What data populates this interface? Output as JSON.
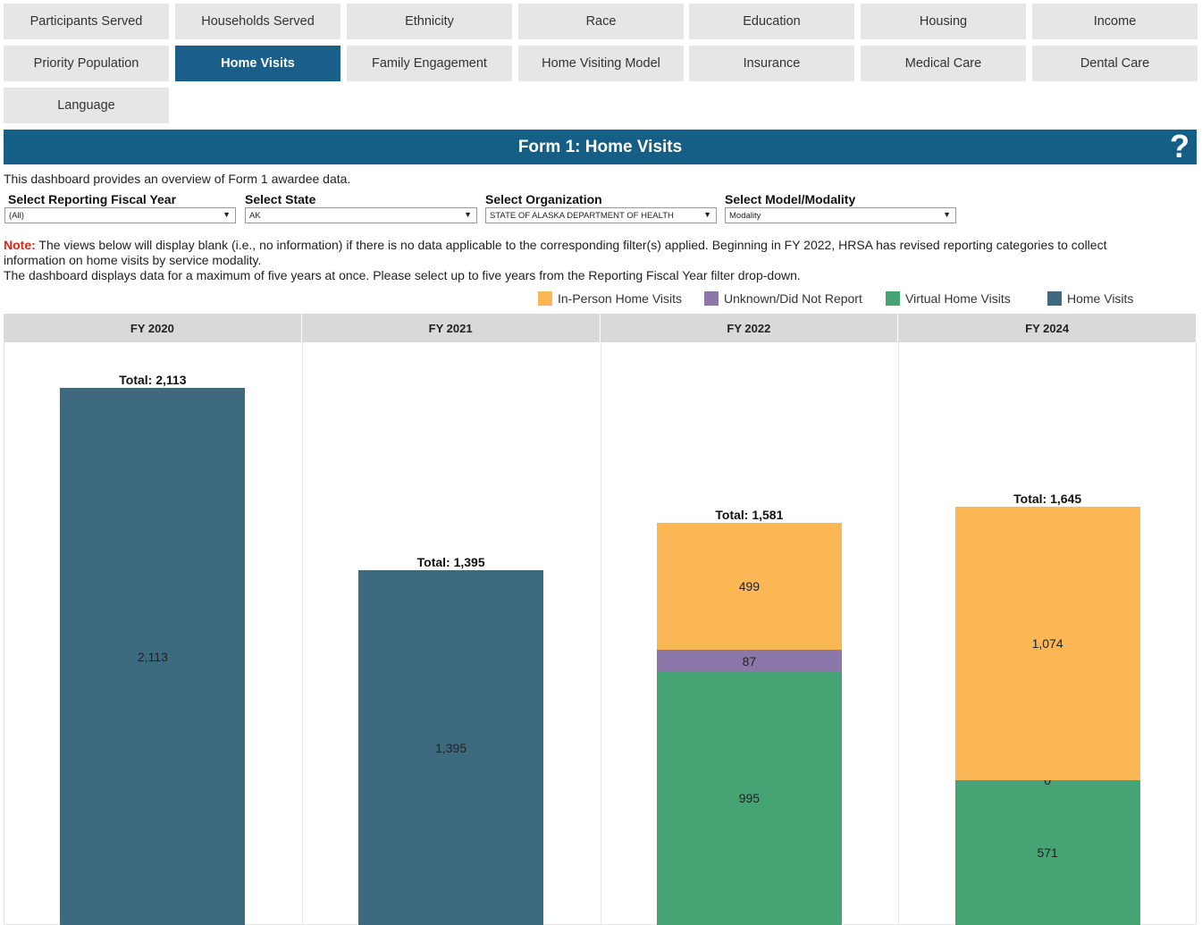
{
  "tabs": [
    "Participants Served",
    "Households Served",
    "Ethnicity",
    "Race",
    "Education",
    "Housing",
    "Income",
    "Priority Population",
    "Home Visits",
    "Family Engagement",
    "Home Visiting Model",
    "Insurance",
    "Medical Care",
    "Dental Care",
    "Language"
  ],
  "active_tab": "Home Visits",
  "banner": {
    "title": "Form 1: Home Visits",
    "help_glyph": "?"
  },
  "intro_text": "This dashboard provides an overview of Form 1 awardee data.",
  "filters": [
    {
      "label": "Select Reporting Fiscal Year",
      "value": "(All)"
    },
    {
      "label": "Select State",
      "value": "AK"
    },
    {
      "label": "Select Organization",
      "value": "STATE OF ALASKA DEPARTMENT OF HEALTH"
    },
    {
      "label": "Select Model/Modality",
      "value": "Modality"
    }
  ],
  "note": {
    "label": "Note:",
    "text1": " The views below will display blank (i.e., no information) if there is no data applicable to the corresponding filter(s) applied. Beginning in FY 2022, HRSA has revised reporting categories to collect information on home visits by service modality.",
    "text2": "The dashboard displays data for a maximum of five years at once. Please select up to five years from the Reporting Fiscal Year filter drop-down."
  },
  "colors": {
    "in_person": "#fbb655",
    "unknown": "#8c77ab",
    "virtual": "#46a474",
    "home_visits": "#3e6a80",
    "active_tab": "#1a5f8a",
    "banner": "#155f87"
  },
  "chart_data": {
    "type": "bar",
    "stacked": true,
    "categories": [
      "FY 2020",
      "FY 2021",
      "FY 2022",
      "FY 2024"
    ],
    "series": [
      {
        "name": "Virtual Home Visits",
        "color_key": "virtual",
        "values": [
          null,
          null,
          995,
          571
        ]
      },
      {
        "name": "Unknown/Did Not Report",
        "color_key": "unknown",
        "values": [
          null,
          null,
          87,
          0
        ]
      },
      {
        "name": "In-Person Home Visits",
        "color_key": "in_person",
        "values": [
          null,
          null,
          499,
          1074
        ]
      },
      {
        "name": "Home Visits",
        "color_key": "home_visits",
        "values": [
          2113,
          1395,
          null,
          null
        ]
      }
    ],
    "value_labels": [
      [
        "2,113"
      ],
      [
        "1,395"
      ],
      [
        "995",
        "87",
        "499"
      ],
      [
        "571",
        "0",
        "1,074"
      ]
    ],
    "totals": [
      2113,
      1395,
      1581,
      1645
    ],
    "total_labels": [
      "Total: 2,113",
      "Total: 1,395",
      "Total: 1,581",
      "Total: 1,645"
    ],
    "legend": [
      {
        "name": "In-Person Home Visits",
        "color_key": "in_person"
      },
      {
        "name": "Unknown/Did Not Report",
        "color_key": "unknown"
      },
      {
        "name": "Virtual Home Visits",
        "color_key": "virtual"
      },
      {
        "name": "Home Visits",
        "color_key": "home_visits"
      }
    ],
    "title": "",
    "xlabel": "",
    "ylabel": ""
  }
}
